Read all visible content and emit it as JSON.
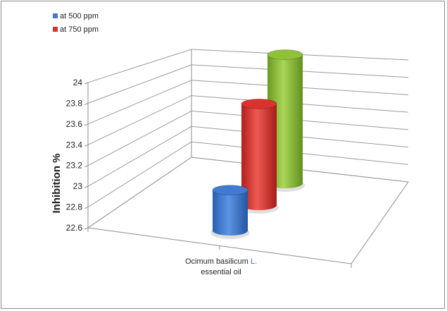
{
  "chart_data": {
    "type": "bar",
    "style": "3d-cylinder",
    "title": "",
    "ylabel": "Inhibition %",
    "xlabel": "",
    "categories": [
      "Ocimum basilicum L. essential oil"
    ],
    "category_label": {
      "line1": "Ocimum basilicum",
      "line1_suffix": "L.",
      "line2": "essential  oil"
    },
    "series": [
      {
        "name": "at 500 ppm",
        "color": "#3f7bd1",
        "values": [
          22.99
        ]
      },
      {
        "name": "at 750 ppm",
        "color": "#d9332f",
        "values": [
          23.65
        ]
      },
      {
        "name": "",
        "color": "#8fc23a",
        "values": [
          23.97
        ]
      }
    ],
    "ylim": [
      22.6,
      24
    ],
    "yticks": [
      "22.6",
      "22.8",
      "23",
      "23.2",
      "23.4",
      "23.6",
      "23.8",
      "24"
    ],
    "grid": true,
    "legend": "top-left"
  }
}
